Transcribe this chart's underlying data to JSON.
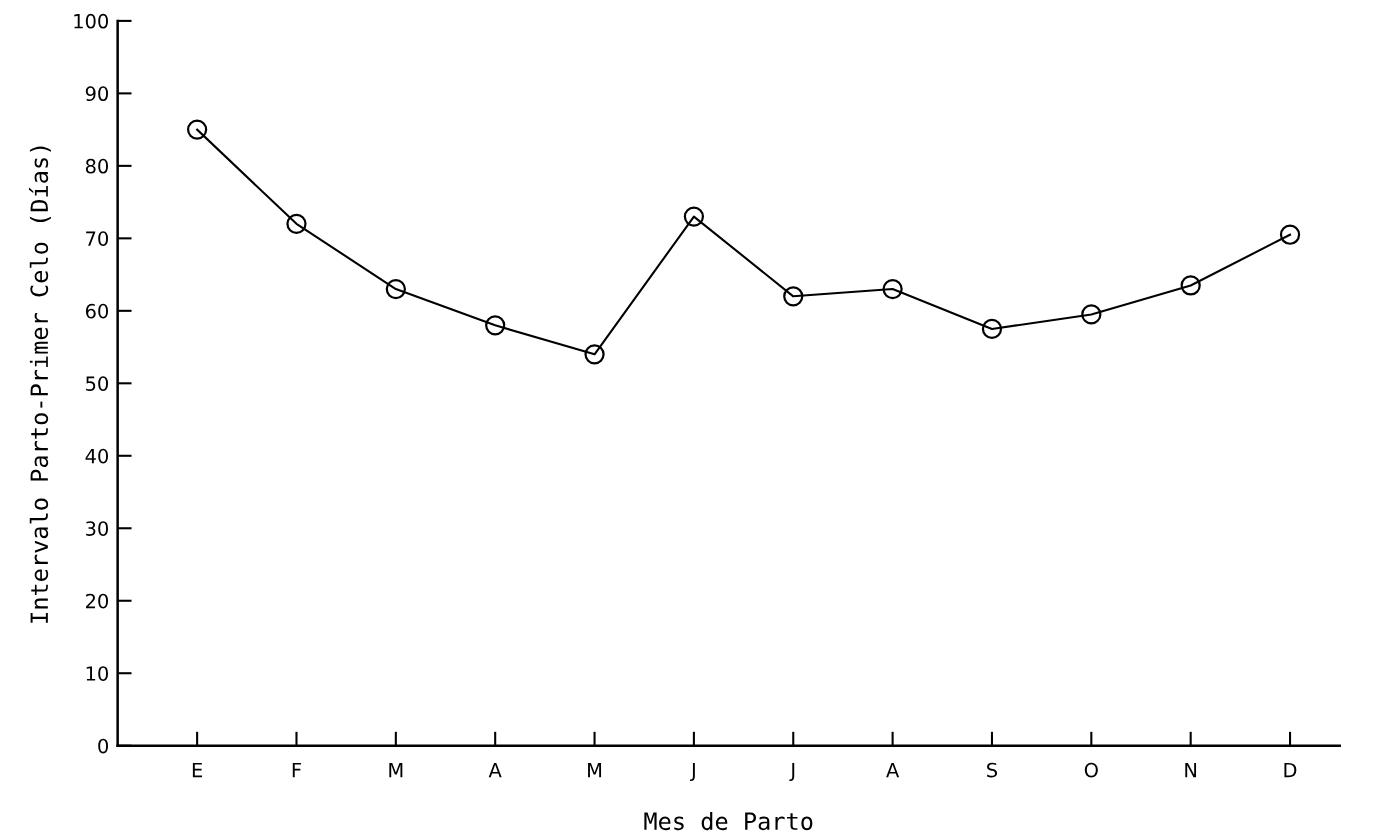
{
  "chart_data": {
    "type": "line",
    "xlabel": "Mes de Parto",
    "ylabel": "Intervalo Parto-Primer Celo (Días)",
    "categories": [
      "E",
      "F",
      "M",
      "A",
      "M",
      "J",
      "J",
      "A",
      "S",
      "O",
      "N",
      "D"
    ],
    "series": [
      {
        "color": "#000000",
        "values": [
          85,
          72,
          63,
          58,
          54,
          73,
          62,
          63,
          57.5,
          59.5,
          63.5,
          70.5
        ]
      }
    ],
    "ylim": [
      0,
      100
    ],
    "yticks": [
      0,
      10,
      20,
      30,
      40,
      50,
      60,
      70,
      80,
      90,
      100
    ],
    "grid": false,
    "legend": false,
    "marker": "circle",
    "line_style": "solid"
  }
}
